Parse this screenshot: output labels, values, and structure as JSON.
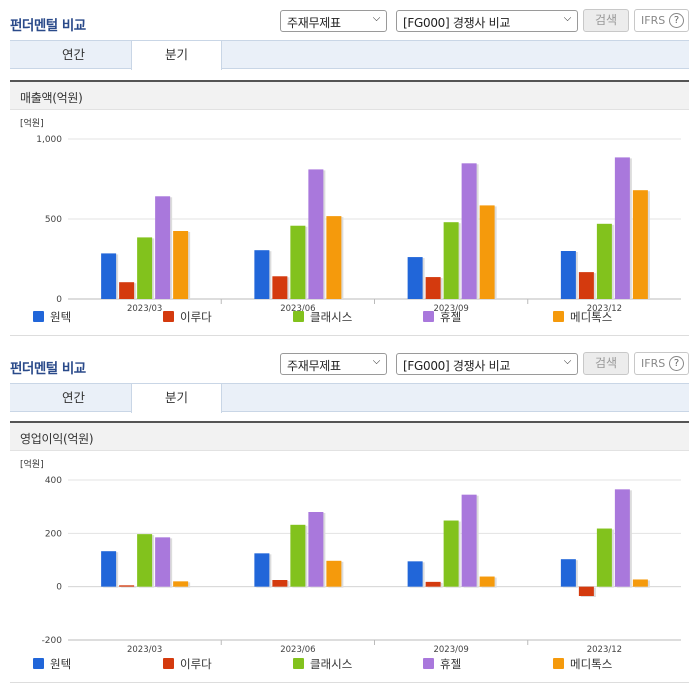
{
  "sections": [
    {
      "title": "펀더멘털 비교",
      "select_a": "주재무제표",
      "select_b": "[FG000] 경쟁사 비교",
      "search_label": "검색",
      "ifrs_label": "IFRS",
      "help_label": "?",
      "tabs": [
        "연간",
        "분기"
      ],
      "chart_title": "매출액(억원)"
    },
    {
      "title": "펀더멘털 비교",
      "select_a": "주재무제표",
      "select_b": "[FG000] 경쟁사 비교",
      "search_label": "검색",
      "ifrs_label": "IFRS",
      "help_label": "?",
      "tabs": [
        "연간",
        "분기"
      ],
      "chart_title": "영업이익(억원)"
    }
  ],
  "colors": {
    "원텍": "#2166d9",
    "이루다": "#d43a0e",
    "클래시스": "#82c21d",
    "휴젤": "#a978dc",
    "메디톡스": "#f59a0c"
  },
  "chart_data": [
    {
      "type": "bar",
      "unit_label": "[억원]",
      "categories": [
        "2023/03",
        "2023/06",
        "2023/09",
        "2023/12"
      ],
      "ylim": [
        0,
        1000
      ],
      "yticks": [
        0,
        500,
        1000
      ],
      "ytick_labels": [
        "0",
        "500",
        "1,000"
      ],
      "series": [
        {
          "name": "원텍",
          "values": [
            285,
            305,
            262,
            300
          ]
        },
        {
          "name": "이루다",
          "values": [
            105,
            142,
            137,
            168
          ]
        },
        {
          "name": "클래시스",
          "values": [
            385,
            458,
            480,
            470
          ]
        },
        {
          "name": "휴젤",
          "values": [
            642,
            810,
            848,
            885
          ]
        },
        {
          "name": "메디톡스",
          "values": [
            425,
            518,
            585,
            680
          ]
        }
      ]
    },
    {
      "type": "bar",
      "unit_label": "[억원]",
      "categories": [
        "2023/03",
        "2023/06",
        "2023/09",
        "2023/12"
      ],
      "ylim": [
        -200,
        400
      ],
      "yticks": [
        -200,
        0,
        200,
        400
      ],
      "ytick_labels": [
        "-200",
        "0",
        "200",
        "400"
      ],
      "series": [
        {
          "name": "원텍",
          "values": [
            133,
            125,
            95,
            103
          ]
        },
        {
          "name": "이루다",
          "values": [
            5,
            25,
            18,
            -35
          ]
        },
        {
          "name": "클래시스",
          "values": [
            197,
            232,
            248,
            218
          ]
        },
        {
          "name": "휴젤",
          "values": [
            185,
            280,
            345,
            365
          ]
        },
        {
          "name": "메디톡스",
          "values": [
            20,
            97,
            38,
            27
          ]
        }
      ]
    }
  ]
}
